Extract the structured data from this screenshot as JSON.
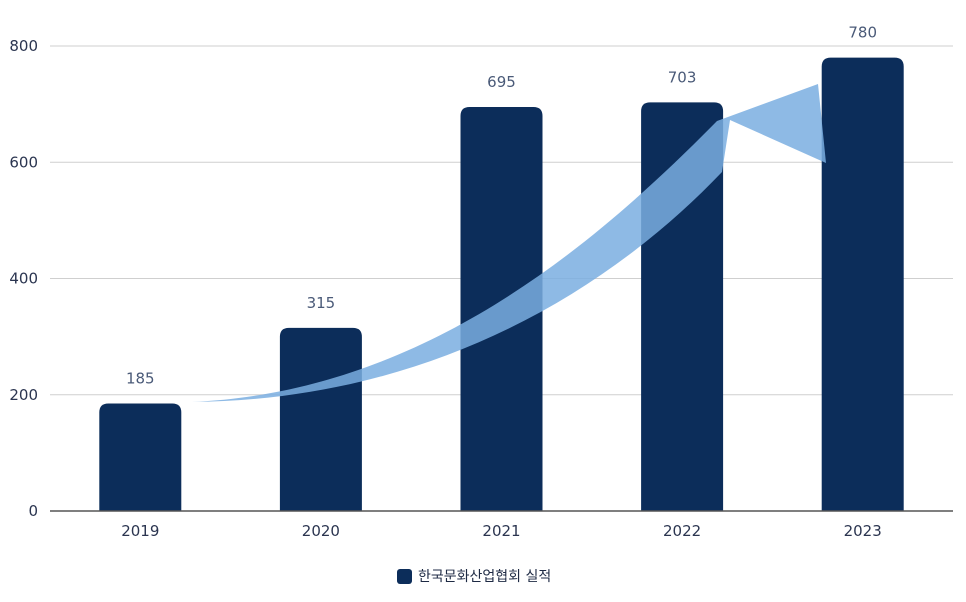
{
  "chart_data": {
    "type": "bar",
    "categories": [
      "2019",
      "2020",
      "2021",
      "2022",
      "2023"
    ],
    "series": [
      {
        "name": "한국문화산업협회 실적",
        "values": [
          185,
          315,
          695,
          703,
          780
        ]
      }
    ],
    "ylim": [
      0,
      800
    ],
    "yticks": [
      "0",
      "200",
      "400",
      "600",
      "800"
    ],
    "data_labels": [
      "185",
      "315",
      "695",
      "703",
      "780"
    ],
    "grid": true,
    "legend_position": "bottom-center",
    "annotation": "upward-trend-arrow",
    "colors": {
      "bar": "#0c2d5a",
      "arrow": "#7aaee0",
      "grid": "#cfcfcf",
      "axis": "#555555"
    }
  }
}
